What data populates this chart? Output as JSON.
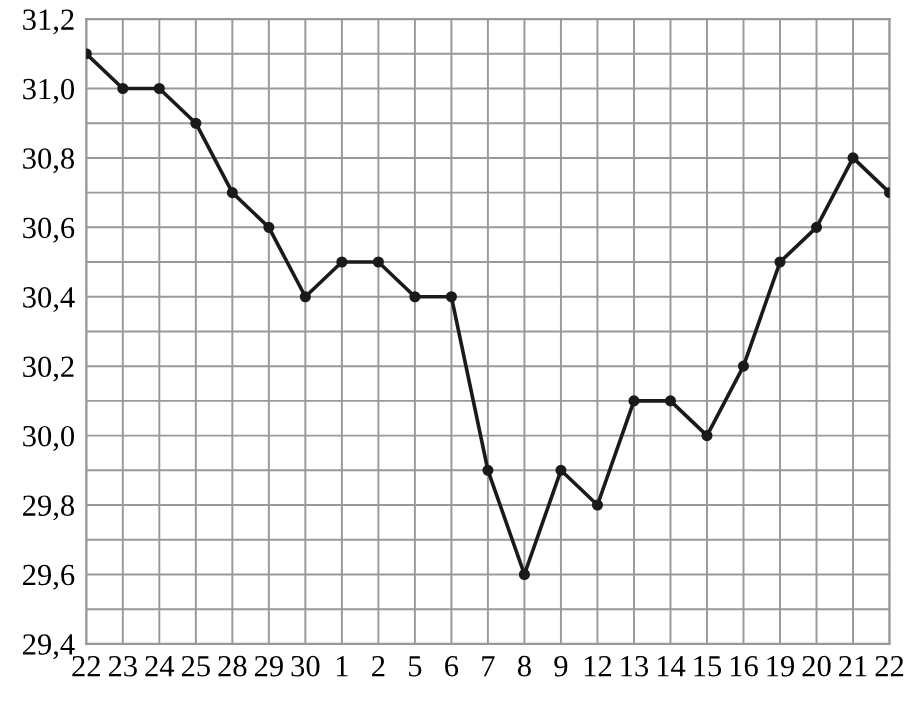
{
  "chart_data": {
    "type": "line",
    "categories": [
      "22",
      "23",
      "24",
      "25",
      "28",
      "29",
      "30",
      "1",
      "2",
      "5",
      "6",
      "7",
      "8",
      "9",
      "12",
      "13",
      "14",
      "15",
      "16",
      "19",
      "20",
      "21",
      "22"
    ],
    "values": [
      31.1,
      31.0,
      31.0,
      30.9,
      30.7,
      30.6,
      30.4,
      30.5,
      30.5,
      30.4,
      30.4,
      29.9,
      29.6,
      29.9,
      29.8,
      30.1,
      30.1,
      30.0,
      30.2,
      30.5,
      30.6,
      30.8,
      30.7
    ],
    "color": "#1a1a1a",
    "ylim": [
      29.4,
      31.2
    ],
    "yticks": [
      {
        "value": 29.4,
        "label": "29,4"
      },
      {
        "value": 29.5,
        "label": null
      },
      {
        "value": 29.6,
        "label": "29,6"
      },
      {
        "value": 29.7,
        "label": null
      },
      {
        "value": 29.8,
        "label": "29,8"
      },
      {
        "value": 29.9,
        "label": null
      },
      {
        "value": 30.0,
        "label": "30,0"
      },
      {
        "value": 30.1,
        "label": null
      },
      {
        "value": 30.2,
        "label": "30,2"
      },
      {
        "value": 30.3,
        "label": null
      },
      {
        "value": 30.4,
        "label": "30,4"
      },
      {
        "value": 30.5,
        "label": null
      },
      {
        "value": 30.6,
        "label": "30,6"
      },
      {
        "value": 30.7,
        "label": null
      },
      {
        "value": 30.8,
        "label": "30,8"
      },
      {
        "value": 30.9,
        "label": null
      },
      {
        "value": 31.0,
        "label": "31,0"
      },
      {
        "value": 31.1,
        "label": null
      },
      {
        "value": 31.2,
        "label": "31,2"
      }
    ],
    "grid": true,
    "marker": "circle",
    "line_style": "solid"
  }
}
